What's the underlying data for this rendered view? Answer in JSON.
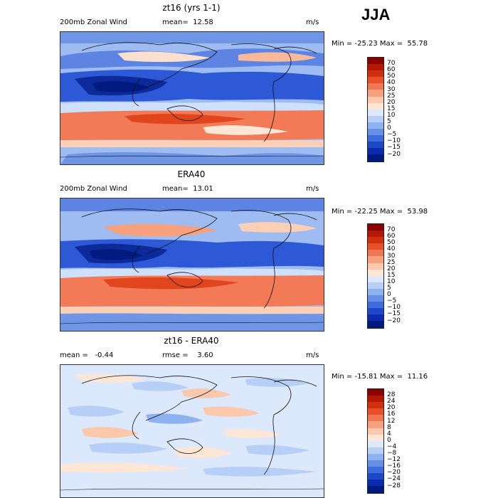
{
  "season": "JJA",
  "panels": [
    {
      "title": "zt16 (yrs 1-1)",
      "left_text": "200mb Zonal Wind",
      "mid_text": "mean=  12.58",
      "units": "m/s",
      "stats": "Min = -25.23 Max =  55.78",
      "colorbar": [
        "70",
        "60",
        "50",
        "40",
        "30",
        "25",
        "20",
        "15",
        "10",
        "5",
        "0",
        "−5",
        "−10",
        "−15",
        "−20"
      ],
      "colors": [
        "#8b0000",
        "#b31800",
        "#d12e0c",
        "#e8502a",
        "#f07654",
        "#f7a07e",
        "#fbc8ab",
        "#fde6d6",
        "#dce8fb",
        "#b7cff7",
        "#8eb1f0",
        "#6690e6",
        "#3e6cdb",
        "#1d48c8",
        "#0a2bb0",
        "#001a80"
      ]
    },
    {
      "title": "ERA40",
      "left_text": "200mb Zonal Wind",
      "mid_text": "mean=  13.01",
      "units": "m/s",
      "stats": "Min = -22.25 Max =  53.98",
      "colorbar": [
        "70",
        "60",
        "50",
        "40",
        "30",
        "25",
        "20",
        "15",
        "10",
        "5",
        "0",
        "−5",
        "−10",
        "−15",
        "−20"
      ],
      "colors": [
        "#8b0000",
        "#b31800",
        "#d12e0c",
        "#e8502a",
        "#f07654",
        "#f7a07e",
        "#fbc8ab",
        "#fde6d6",
        "#dce8fb",
        "#b7cff7",
        "#8eb1f0",
        "#6690e6",
        "#3e6cdb",
        "#1d48c8",
        "#0a2bb0",
        "#001a80"
      ]
    },
    {
      "title": "zt16 - ERA40",
      "left_text": "mean =   -0.44",
      "mid_text": "rmse =    3.60",
      "units": "m/s",
      "stats": "Min = -15.81 Max =  11.16",
      "colorbar": [
        "28",
        "24",
        "20",
        "16",
        "12",
        "8",
        "4",
        "0",
        "−4",
        "−8",
        "−12",
        "−16",
        "−20",
        "−24",
        "−28"
      ],
      "colors": [
        "#8b0000",
        "#b31800",
        "#d12e0c",
        "#e8502a",
        "#f07654",
        "#f7a07e",
        "#fbc8ab",
        "#fde6d6",
        "#dce8fb",
        "#b7cff7",
        "#8eb1f0",
        "#6690e6",
        "#3e6cdb",
        "#1d48c8",
        "#0a2bb0",
        "#001a80"
      ]
    }
  ]
}
